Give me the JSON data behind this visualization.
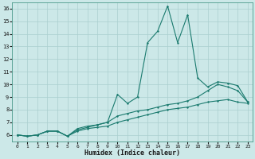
{
  "xlabel": "Humidex (Indice chaleur)",
  "background_color": "#cce8e8",
  "grid_color": "#aacfcf",
  "line_color": "#1a7a6e",
  "x_values": [
    0,
    1,
    2,
    3,
    4,
    5,
    6,
    7,
    8,
    9,
    10,
    11,
    12,
    13,
    14,
    15,
    16,
    17,
    18,
    19,
    20,
    21,
    22,
    23
  ],
  "series1": [
    6.0,
    5.9,
    6.0,
    6.3,
    6.3,
    5.9,
    6.3,
    6.5,
    6.6,
    6.7,
    7.0,
    7.2,
    7.4,
    7.6,
    7.8,
    8.0,
    8.1,
    8.2,
    8.4,
    8.6,
    8.7,
    8.8,
    8.6,
    8.5
  ],
  "series2": [
    6.0,
    5.9,
    6.0,
    6.3,
    6.3,
    5.9,
    6.4,
    6.6,
    6.8,
    7.0,
    7.5,
    7.7,
    7.9,
    8.0,
    8.2,
    8.4,
    8.5,
    8.7,
    9.0,
    9.5,
    10.0,
    9.8,
    9.5,
    8.6
  ],
  "series3": [
    6.0,
    5.9,
    6.0,
    6.3,
    6.3,
    5.9,
    6.5,
    6.7,
    6.8,
    7.0,
    9.2,
    8.5,
    9.0,
    13.3,
    14.2,
    16.2,
    13.3,
    15.5,
    10.5,
    9.8,
    10.2,
    10.1,
    9.9,
    8.6
  ],
  "ylim": [
    5.5,
    16.5
  ],
  "xlim": [
    -0.5,
    23.5
  ],
  "yticks": [
    6,
    7,
    8,
    9,
    10,
    11,
    12,
    13,
    14,
    15,
    16
  ],
  "xticks": [
    0,
    1,
    2,
    3,
    4,
    5,
    6,
    7,
    8,
    9,
    10,
    11,
    12,
    13,
    14,
    15,
    16,
    17,
    18,
    19,
    20,
    21,
    22,
    23
  ]
}
